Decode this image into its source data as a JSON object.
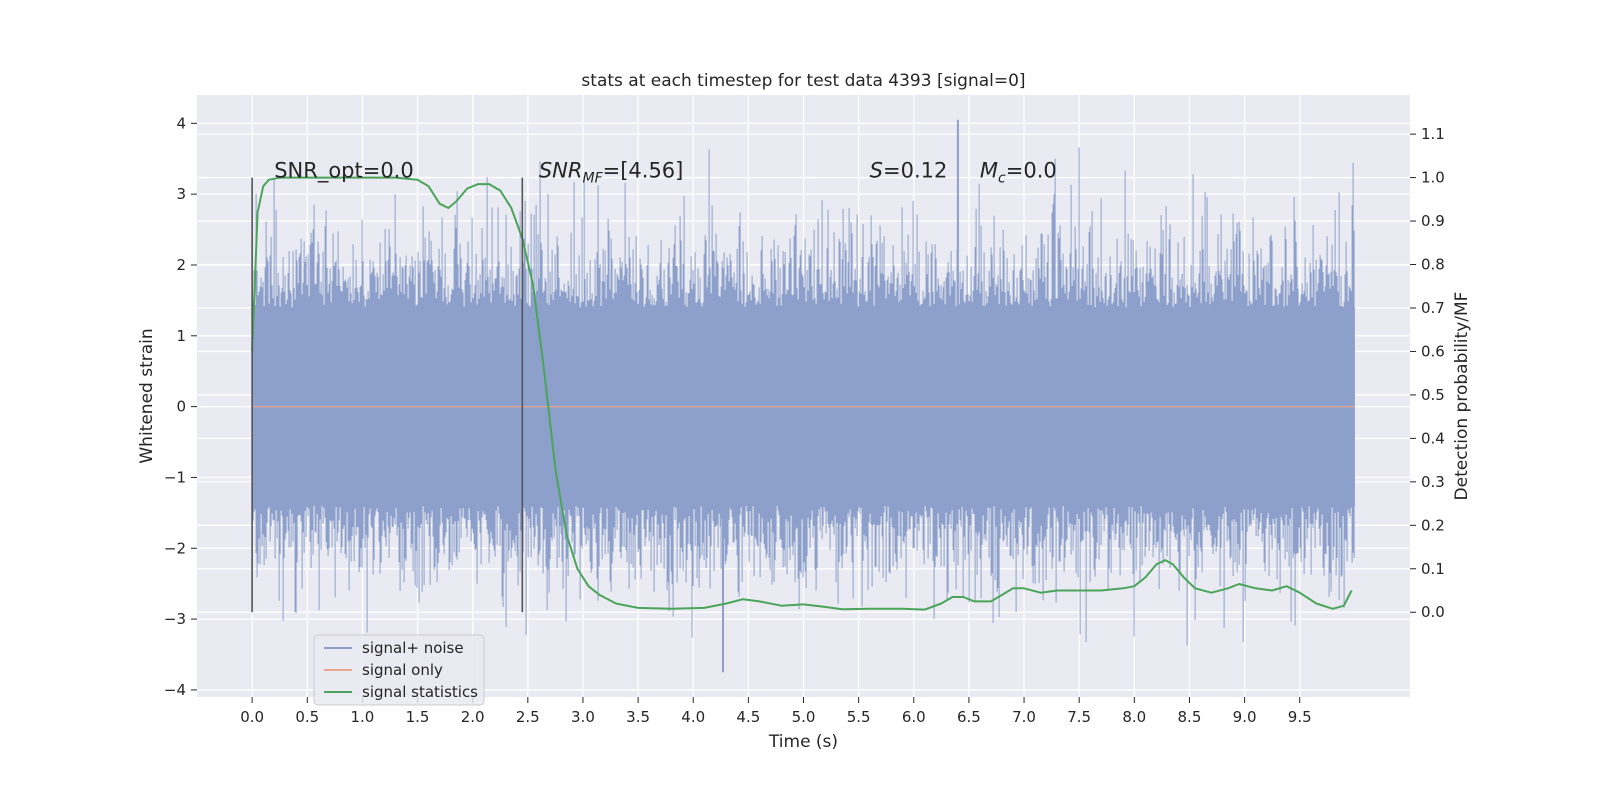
{
  "chart_data": {
    "type": "line",
    "title": "stats at each timestep for test data 4393 [signal=0]",
    "xlabel": "Time (s)",
    "ylabel_left": "Whitened strain",
    "ylabel_right": "Detection probability/MF",
    "xlim": [
      -0.5,
      10.5
    ],
    "ylim_left": [
      -4.1,
      4.4
    ],
    "ylim_right": [
      -0.195,
      1.19
    ],
    "x_ticks": [
      0.0,
      0.5,
      1.0,
      1.5,
      2.0,
      2.5,
      3.0,
      3.5,
      4.0,
      4.5,
      5.0,
      5.5,
      6.0,
      6.5,
      7.0,
      7.5,
      8.0,
      8.5,
      9.0,
      9.5
    ],
    "x_tick_labels": [
      "0.0",
      "0.5",
      "1.0",
      "1.5",
      "2.0",
      "2.5",
      "3.0",
      "3.5",
      "4.0",
      "4.5",
      "5.0",
      "5.5",
      "6.0",
      "6.5",
      "7.0",
      "7.5",
      "8.0",
      "8.5",
      "9.0",
      "9.5"
    ],
    "y_ticks_left": [
      4,
      3,
      2,
      1,
      0,
      -1,
      -2,
      -3,
      -4
    ],
    "y_tick_labels_left": [
      "4",
      "3",
      "2",
      "1",
      "0",
      "−1",
      "−2",
      "−3",
      "−4"
    ],
    "y_ticks_right": [
      1.1,
      1.0,
      0.9,
      0.8,
      0.7,
      0.6,
      0.5,
      0.4,
      0.3,
      0.2,
      0.1,
      0.0
    ],
    "y_tick_labels_right": [
      "1.1",
      "1.0",
      "0.9",
      "0.8",
      "0.7",
      "0.6",
      "0.5",
      "0.4",
      "0.3",
      "0.2",
      "0.1",
      "0.0"
    ],
    "grid": true,
    "series": [
      {
        "name": "signal+ noise",
        "axis": "left",
        "color": "#8da0cb",
        "kind": "noise",
        "x_range": [
          0.0,
          10.0
        ],
        "core_amplitude": 1.4,
        "peak_max": 4.05,
        "trough_min": -3.75
      },
      {
        "name": "signal only",
        "axis": "left",
        "color": "#e8a48c",
        "x": [
          0.0,
          10.0
        ],
        "y": [
          0.0,
          0.0
        ]
      },
      {
        "name": "signal statistics",
        "axis": "right",
        "color": "#4aa55a",
        "x": [
          0.0,
          0.05,
          0.1,
          0.15,
          0.25,
          0.5,
          1.0,
          1.3,
          1.5,
          1.6,
          1.7,
          1.78,
          1.85,
          1.95,
          2.05,
          2.15,
          2.25,
          2.35,
          2.45,
          2.55,
          2.65,
          2.75,
          2.85,
          2.95,
          3.05,
          3.15,
          3.3,
          3.5,
          3.8,
          4.1,
          4.3,
          4.45,
          4.6,
          4.8,
          5.0,
          5.2,
          5.35,
          5.6,
          5.9,
          6.1,
          6.25,
          6.35,
          6.45,
          6.55,
          6.7,
          6.8,
          6.9,
          7.0,
          7.15,
          7.3,
          7.5,
          7.7,
          7.9,
          8.0,
          8.1,
          8.2,
          8.28,
          8.35,
          8.45,
          8.55,
          8.7,
          8.85,
          8.95,
          9.1,
          9.25,
          9.38,
          9.5,
          9.65,
          9.8,
          9.9,
          9.97
        ],
        "y": [
          0.6,
          0.92,
          0.98,
          0.995,
          1.0,
          1.0,
          1.0,
          1.0,
          0.995,
          0.98,
          0.94,
          0.93,
          0.945,
          0.975,
          0.985,
          0.985,
          0.97,
          0.93,
          0.86,
          0.75,
          0.55,
          0.33,
          0.18,
          0.1,
          0.06,
          0.04,
          0.02,
          0.01,
          0.008,
          0.01,
          0.02,
          0.03,
          0.025,
          0.015,
          0.018,
          0.012,
          0.007,
          0.008,
          0.008,
          0.006,
          0.02,
          0.035,
          0.035,
          0.025,
          0.025,
          0.04,
          0.055,
          0.055,
          0.045,
          0.05,
          0.05,
          0.05,
          0.055,
          0.06,
          0.08,
          0.11,
          0.12,
          0.11,
          0.08,
          0.055,
          0.045,
          0.055,
          0.065,
          0.055,
          0.05,
          0.06,
          0.045,
          0.02,
          0.008,
          0.015,
          0.05
        ]
      }
    ],
    "vertical_lines": [
      {
        "x": 0.0,
        "y_range_right": [
          0.0,
          1.0
        ],
        "color": "#555555"
      },
      {
        "x": 2.45,
        "y_range_right": [
          0.0,
          1.0
        ],
        "color": "#555555"
      }
    ],
    "annotations": [
      {
        "id": "snr-opt",
        "x": 0.2,
        "y_right": 1.0,
        "text": "SNR_opt=0.0"
      },
      {
        "id": "snr-mf",
        "x": 2.6,
        "y_right": 1.0,
        "prefix_it": "SNR",
        "sub_it": "MF",
        "suffix": "=[4.56]"
      },
      {
        "id": "s-stat",
        "x": 5.6,
        "y_right": 1.0,
        "prefix_it": "S",
        "suffix": "=0.12"
      },
      {
        "id": "mc",
        "x": 6.6,
        "y_right": 1.0,
        "prefix_it": "M",
        "sub_it": "c",
        "suffix": "=0.0"
      }
    ],
    "legend": {
      "position": "lower-left",
      "entries": [
        "signal+ noise",
        "signal only",
        "signal statistics"
      ]
    }
  }
}
